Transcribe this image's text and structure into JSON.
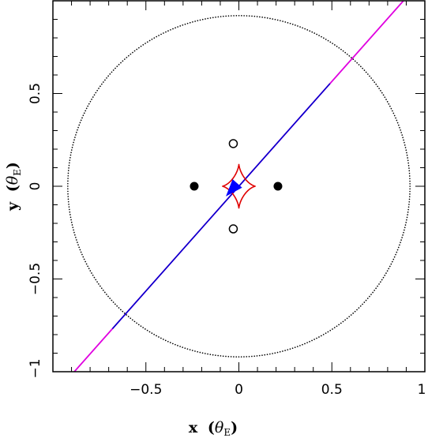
{
  "chart_data": {
    "type": "scatter",
    "title": "",
    "xlabel": {
      "main": "x",
      "theta": "θ",
      "sub": "E"
    },
    "ylabel": {
      "main": "y",
      "theta": "θ",
      "sub": "E"
    },
    "xlim": [
      -1,
      1
    ],
    "ylim": [
      -1,
      1
    ],
    "xticks": [
      -0.5,
      0,
      0.5,
      1
    ],
    "xtick_labels": [
      "−0.5",
      "0",
      "0.5",
      "1"
    ],
    "yticks": [
      -1,
      -0.5,
      0,
      0.5
    ],
    "ytick_labels": [
      "−1",
      "−0.5",
      "0",
      "0.5"
    ],
    "grid": false,
    "colors": {
      "caustic": "#e00000",
      "trajectory_inner": "#0000cc",
      "trajectory_outer": "#e000e0",
      "arrow": "#0000ff",
      "circle": "#000000"
    },
    "einstein_circle": {
      "cx": 0,
      "cy": 0,
      "r": 0.92,
      "style": "dotted"
    },
    "lens_masses": [
      {
        "x": -0.24,
        "y": 0.0
      },
      {
        "x": 0.21,
        "y": 0.0
      }
    ],
    "images": [
      {
        "x": -0.03,
        "y": 0.23
      },
      {
        "x": -0.03,
        "y": -0.23
      }
    ],
    "caustic": {
      "center": [
        0.0,
        0.0
      ],
      "cusps": [
        [
          0.0,
          0.12
        ],
        [
          0.09,
          0.0
        ],
        [
          0.0,
          -0.12
        ],
        [
          -0.09,
          0.0
        ]
      ],
      "shape": "astroid"
    },
    "trajectory": {
      "slope": 1.13,
      "intercept": 0.0,
      "inner_segment_x": [
        -0.68,
        0.49
      ],
      "outer_segment_x": [
        -1.0,
        1.0
      ]
    },
    "arrow": {
      "tip": [
        -0.07,
        -0.055
      ],
      "direction": "down-left"
    }
  }
}
